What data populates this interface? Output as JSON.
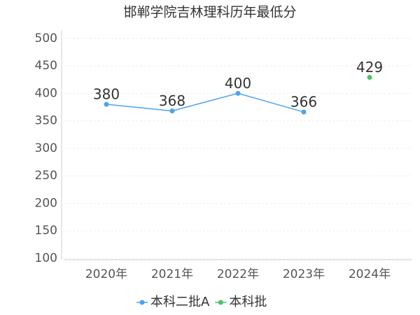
{
  "chart_data": {
    "type": "line",
    "title": "邯郸学院吉林理科历年最低分",
    "categories": [
      "2020年",
      "2021年",
      "2022年",
      "2023年",
      "2024年"
    ],
    "series": [
      {
        "name": "本科二批A",
        "color": "#4da3ee",
        "values": [
          380,
          368,
          400,
          366,
          null
        ]
      },
      {
        "name": "本科批",
        "color": "#4cc26a",
        "values": [
          null,
          null,
          null,
          null,
          429
        ]
      }
    ],
    "ylim": [
      100,
      515
    ],
    "yticks": [
      100,
      150,
      200,
      250,
      300,
      350,
      400,
      450,
      500
    ],
    "grid": true,
    "legend": "bottom"
  }
}
